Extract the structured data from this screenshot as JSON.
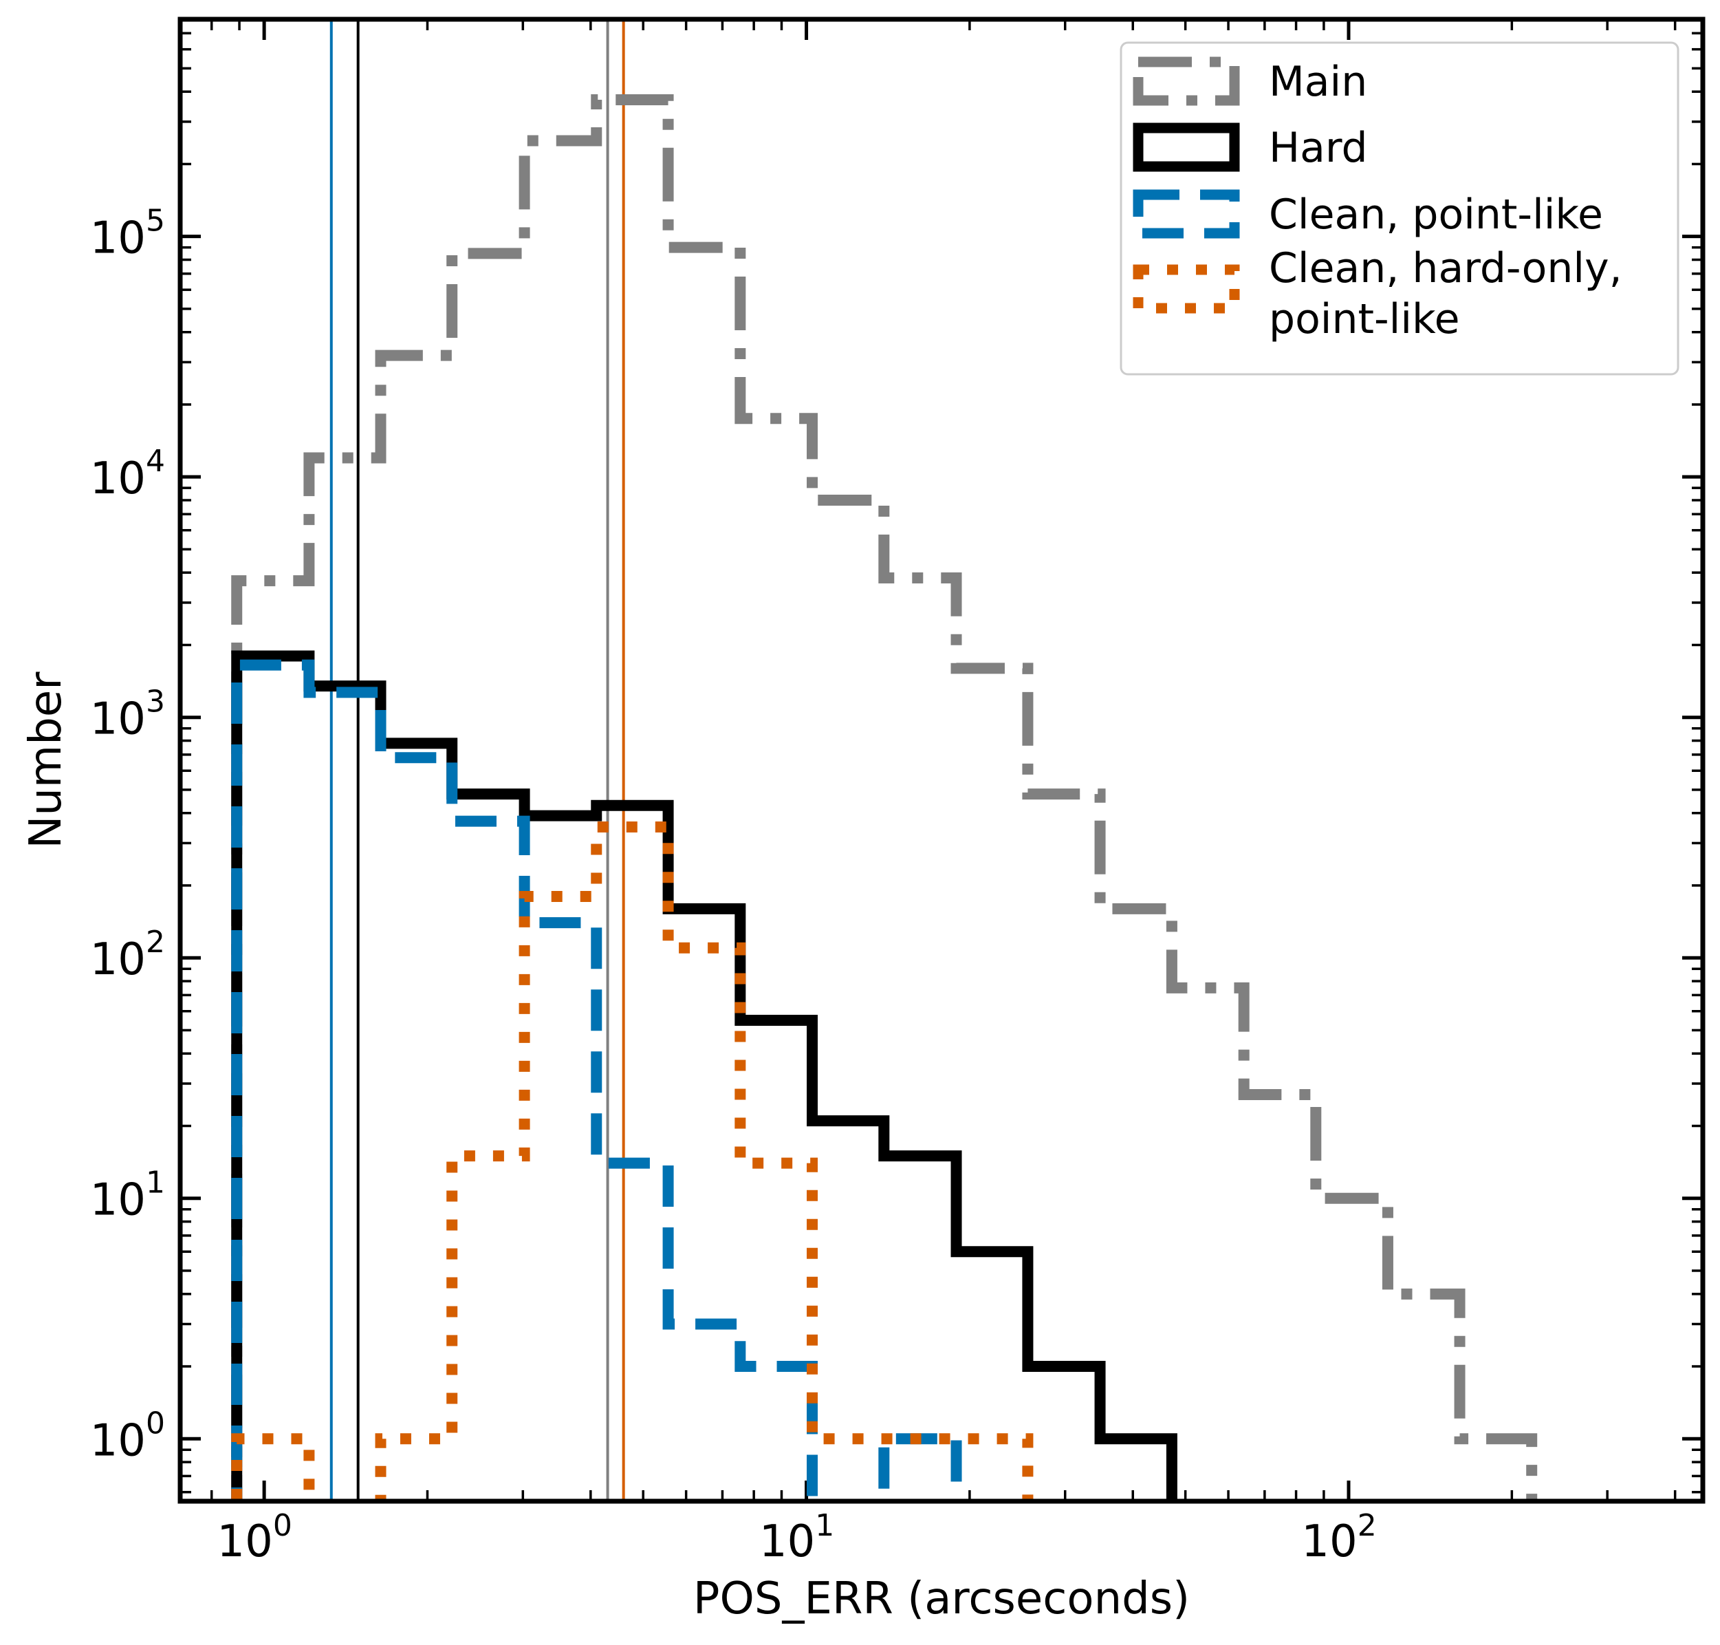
{
  "chart_data": {
    "type": "step-histogram",
    "xscale": "log",
    "yscale": "log",
    "xlim": [
      0.7,
      450
    ],
    "ylim": [
      0.55,
      800000
    ],
    "xlabel": "POS_ERR (arcseconds)",
    "ylabel": "Number",
    "x_ticks": [
      {
        "base": "10",
        "exp": "0",
        "value": 1
      },
      {
        "base": "10",
        "exp": "1",
        "value": 10
      },
      {
        "base": "10",
        "exp": "2",
        "value": 100
      }
    ],
    "y_ticks": [
      {
        "base": "10",
        "exp": "0",
        "value": 1
      },
      {
        "base": "10",
        "exp": "1",
        "value": 10
      },
      {
        "base": "10",
        "exp": "2",
        "value": 100
      },
      {
        "base": "10",
        "exp": "3",
        "value": 1000
      },
      {
        "base": "10",
        "exp": "4",
        "value": 10000
      },
      {
        "base": "10",
        "exp": "5",
        "value": 100000
      }
    ],
    "bin_edges": [
      0.89,
      1.21,
      1.64,
      2.22,
      3.02,
      4.1,
      5.56,
      7.55,
      10.25,
      13.9,
      18.9,
      25.6,
      34.8,
      47.2,
      64.1,
      87.0,
      118.1,
      160.3,
      217.6
    ],
    "series": [
      {
        "name": "Main",
        "color": "#808080",
        "dash": "dashdot",
        "values": [
          3700,
          12000,
          32000,
          85000,
          250000,
          370000,
          90000,
          17500,
          8000,
          3800,
          1600,
          480,
          160,
          75,
          27,
          10,
          4,
          1
        ]
      },
      {
        "name": "Hard",
        "color": "#000000",
        "dash": "solid",
        "values": [
          1800,
          1350,
          780,
          480,
          390,
          430,
          160,
          55,
          21,
          15,
          6,
          2,
          1,
          0,
          0,
          0,
          0,
          0
        ]
      },
      {
        "name": "Clean, point-like",
        "color": "#0072B2",
        "dash": "dashed",
        "values": [
          1650,
          1270,
          680,
          370,
          140,
          14,
          3,
          2,
          0,
          1,
          0,
          0,
          0,
          0,
          0,
          0,
          0,
          0
        ]
      },
      {
        "name": "Clean, hard-only, point-like",
        "legend_lines": [
          "Clean, hard-only,",
          "point-like"
        ],
        "color": "#D55E00",
        "dash": "dotted",
        "values": [
          1,
          0,
          1,
          15,
          180,
          350,
          110,
          14,
          1,
          1,
          1,
          0,
          0,
          0,
          0,
          0,
          0,
          0
        ]
      }
    ],
    "vertical_lines": [
      {
        "x": 1.33,
        "color": "#0072B2"
      },
      {
        "x": 1.49,
        "color": "#000000"
      },
      {
        "x": 4.3,
        "color": "#808080"
      },
      {
        "x": 4.6,
        "color": "#D55E00"
      }
    ],
    "legend_position": "upper right"
  }
}
